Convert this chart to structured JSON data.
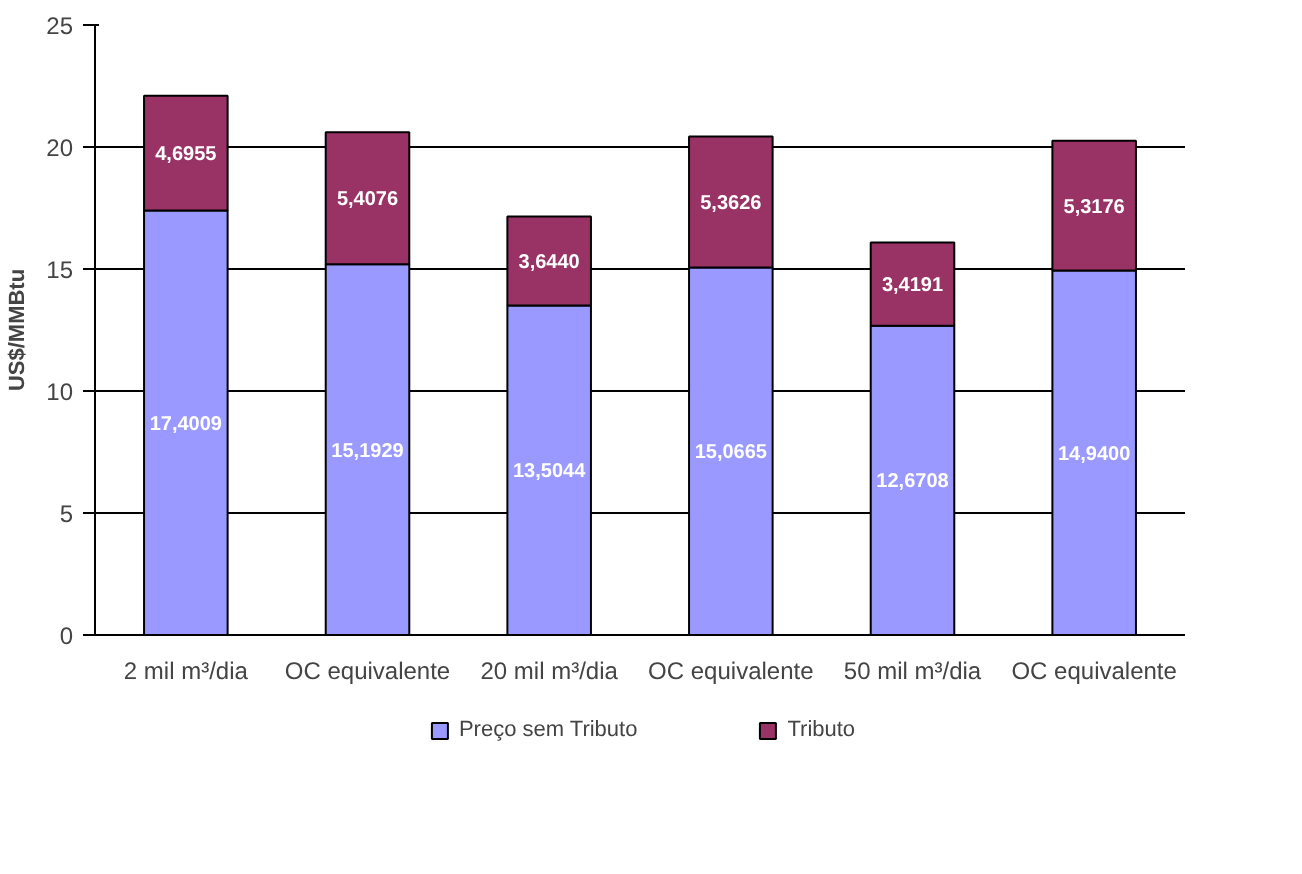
{
  "chart_data": {
    "type": "bar",
    "stacked": true,
    "ylabel": "US$/MMBtu",
    "categories": [
      "2 mil m³/dia",
      "OC equivalente",
      "20 mil m³/dia",
      "OC equivalente",
      "50 mil m³/dia",
      "OC equivalente"
    ],
    "series": [
      {
        "name": "Preço sem Tributo",
        "color": "#9999ff",
        "values": [
          17.4009,
          15.1929,
          13.5044,
          15.0665,
          12.6708,
          14.94
        ],
        "value_labels": [
          "17,4009",
          "15,1929",
          "13,5044",
          "15,0665",
          "12,6708",
          "14,9400"
        ]
      },
      {
        "name": "Tributo",
        "color": "#993366",
        "values": [
          4.6955,
          5.4076,
          3.644,
          5.3626,
          3.4191,
          5.3176
        ],
        "value_labels": [
          "4,6955",
          "5,4076",
          "3,6440",
          "5,3626",
          "3,4191",
          "5,3176"
        ]
      }
    ],
    "ylim": [
      0,
      25
    ],
    "yticks": [
      0,
      5,
      10,
      15,
      20,
      25
    ],
    "grid": "y",
    "legend": "bottom"
  }
}
